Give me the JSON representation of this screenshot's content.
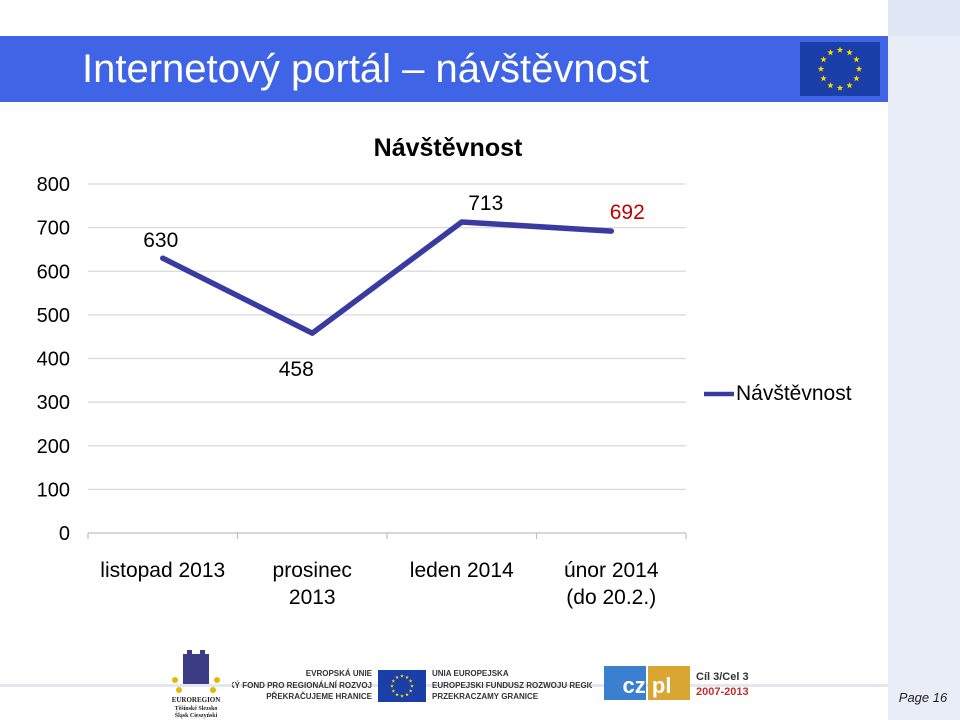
{
  "slide": {
    "title": "Internetový portál – návštěvnost",
    "page_label": "Page 16"
  },
  "chart_data": {
    "type": "line",
    "title": "Návštěvnost",
    "categories": [
      "listopad 2013",
      "prosinec 2013",
      "leden 2014",
      "únor 2014 (do 20.2.)"
    ],
    "category_lines": [
      [
        "listopad 2013"
      ],
      [
        "prosinec",
        "2013"
      ],
      [
        "leden 2014"
      ],
      [
        "únor 2014",
        "(do 20.2.)"
      ]
    ],
    "series": [
      {
        "name": "Návštěvnost",
        "values": [
          630,
          458,
          713,
          692
        ],
        "color": "#3a3ba0"
      }
    ],
    "data_labels": [
      "630",
      "458",
      "713",
      "692"
    ],
    "data_label_colors": [
      "#000000",
      "#000000",
      "#000000",
      "#c00000"
    ],
    "ylim": [
      0,
      800
    ],
    "yticks": [
      0,
      100,
      200,
      300,
      400,
      500,
      600,
      700,
      800
    ],
    "grid": true,
    "legend_position": "right"
  },
  "footer": {
    "euroregion_lines": [
      "EUROREGION",
      "Těšínské Slezsko",
      "Śląsk Cieszyński"
    ],
    "efrr_lines": [
      "EVROPSKÁ UNIE",
      "EVROPSKÝ FOND PRO REGIONÁLNÍ ROZVOJ",
      "PŘEKRAČUJEME HRANICE"
    ],
    "efrr_pl_lines": [
      "UNIA EUROPEJSKA",
      "EUROPEJSKI FUNDUSZ ROZWOJU REGIONALNEGO",
      "PRZEKRACZAMY GRANICE"
    ],
    "czpl": "cz pl",
    "cil3": [
      "Cíl 3/Cel 3",
      "2007-2013"
    ]
  },
  "colors": {
    "title_bar": "#3f64e6",
    "line": "#3a3ba0",
    "grid": "#d9d9d9"
  }
}
